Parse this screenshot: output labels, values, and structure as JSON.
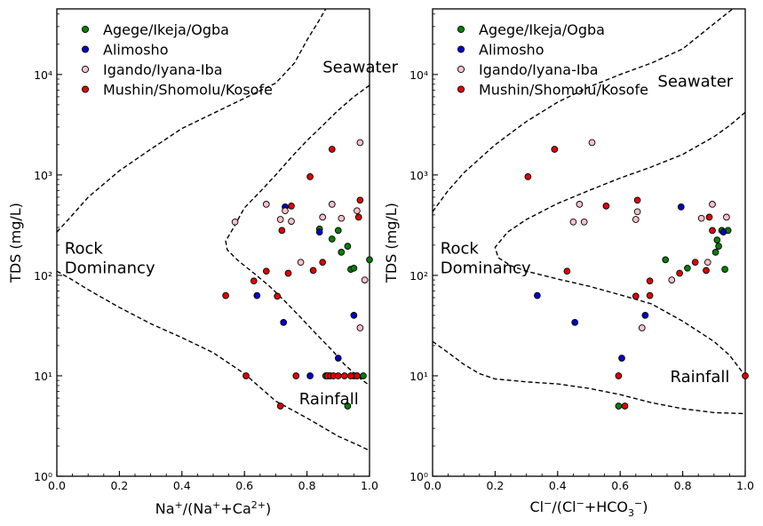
{
  "chart_data": [
    {
      "type": "scatter",
      "title": "",
      "xlabel": "Na⁺/(Na⁺+Ca²⁺)",
      "ylabel": "TDS (mg/L)",
      "xlim": [
        0,
        1
      ],
      "ylim": [
        1,
        45000
      ],
      "yscale": "log",
      "grid": false,
      "legend_position": "top-left",
      "x_ticks": [
        "0.0",
        "0.2",
        "0.4",
        "0.6",
        "0.8",
        "1.0"
      ],
      "y_ticks": [
        "10⁰",
        "10¹",
        "10²",
        "10³",
        "10⁴"
      ],
      "annotations": [
        {
          "text": "Seawater",
          "x": 0.85,
          "y": 10500
        },
        {
          "text": "Rock",
          "x": 0.025,
          "y": 165
        },
        {
          "text": "Dominancy",
          "x": 0.025,
          "y": 105
        },
        {
          "text": "Rainfall",
          "x": 0.775,
          "y": 5.2
        }
      ],
      "series": [
        {
          "name": "Agege/Ikeja/Ogba",
          "color": "#008000",
          "points": [
            [
              0.84,
              290
            ],
            [
              0.88,
              230
            ],
            [
              0.9,
              280
            ],
            [
              0.91,
              170
            ],
            [
              0.93,
              195
            ],
            [
              0.94,
              115
            ],
            [
              0.95,
              118
            ],
            [
              1.0,
              143
            ],
            [
              0.86,
              10
            ],
            [
              0.87,
              10
            ],
            [
              0.93,
              5
            ],
            [
              0.95,
              10
            ],
            [
              0.98,
              10
            ]
          ]
        },
        {
          "name": "Alimosho",
          "color": "#0000cc",
          "points": [
            [
              0.64,
              63
            ],
            [
              0.725,
              34
            ],
            [
              0.73,
              480
            ],
            [
              0.84,
              270
            ],
            [
              0.81,
              10
            ],
            [
              0.9,
              15
            ],
            [
              0.95,
              40
            ],
            [
              0.96,
              10
            ]
          ]
        },
        {
          "name": "Igando/Iyana-Iba",
          "color": "#ffc0cb",
          "points": [
            [
              0.57,
              340
            ],
            [
              0.67,
              510
            ],
            [
              0.715,
              360
            ],
            [
              0.73,
              440
            ],
            [
              0.75,
              345
            ],
            [
              0.78,
              135
            ],
            [
              0.85,
              380
            ],
            [
              0.88,
              510
            ],
            [
              0.91,
              370
            ],
            [
              0.97,
              2100
            ],
            [
              0.97,
              30
            ],
            [
              0.985,
              90
            ],
            [
              0.96,
              440
            ]
          ]
        },
        {
          "name": "Mushin/Shomolu/Kosofe",
          "color": "#e00000",
          "points": [
            [
              0.54,
              63
            ],
            [
              0.605,
              10
            ],
            [
              0.63,
              88
            ],
            [
              0.67,
              110
            ],
            [
              0.705,
              62
            ],
            [
              0.72,
              280
            ],
            [
              0.715,
              5
            ],
            [
              0.74,
              105
            ],
            [
              0.75,
              490
            ],
            [
              0.765,
              10
            ],
            [
              0.81,
              960
            ],
            [
              0.82,
              112
            ],
            [
              0.85,
              135
            ],
            [
              0.865,
              10
            ],
            [
              0.875,
              10
            ],
            [
              0.88,
              1800
            ],
            [
              0.885,
              10
            ],
            [
              0.9,
              10
            ],
            [
              0.92,
              10
            ],
            [
              0.94,
              10
            ],
            [
              0.965,
              380
            ],
            [
              0.97,
              560
            ],
            [
              0.96,
              10
            ]
          ]
        }
      ],
      "boundaries": [
        [
          [
            0,
            270
          ],
          [
            0.05,
            400
          ],
          [
            0.1,
            600
          ],
          [
            0.2,
            1100
          ],
          [
            0.3,
            1800
          ],
          [
            0.4,
            2900
          ],
          [
            0.5,
            4100
          ],
          [
            0.6,
            5800
          ],
          [
            0.7,
            8200
          ],
          [
            0.76,
            13000
          ],
          [
            0.8,
            22000
          ],
          [
            0.84,
            35000
          ],
          [
            0.86,
            45000
          ]
        ],
        [
          [
            0,
            110
          ],
          [
            0.05,
            90
          ],
          [
            0.1,
            72
          ],
          [
            0.2,
            48
          ],
          [
            0.3,
            33
          ],
          [
            0.4,
            24
          ],
          [
            0.5,
            17
          ],
          [
            0.6,
            10.5
          ],
          [
            0.7,
            5.6
          ],
          [
            0.8,
            3.8
          ],
          [
            0.9,
            2.5
          ],
          [
            0.97,
            2.0
          ],
          [
            1.0,
            1.8
          ]
        ],
        [
          [
            1.0,
            7800
          ],
          [
            0.95,
            6000
          ],
          [
            0.9,
            4400
          ],
          [
            0.85,
            3100
          ],
          [
            0.8,
            2200
          ],
          [
            0.75,
            1500
          ],
          [
            0.7,
            1000
          ],
          [
            0.65,
            680
          ],
          [
            0.6,
            470
          ],
          [
            0.56,
            280
          ],
          [
            0.54,
            220
          ],
          [
            0.545,
            180
          ],
          [
            0.58,
            140
          ],
          [
            0.63,
            105
          ],
          [
            0.68,
            78
          ],
          [
            0.73,
            55
          ],
          [
            0.78,
            38
          ],
          [
            0.83,
            26
          ],
          [
            0.88,
            18
          ],
          [
            0.92,
            13
          ],
          [
            0.96,
            10
          ],
          [
            1.0,
            8
          ]
        ]
      ]
    },
    {
      "type": "scatter",
      "title": "",
      "xlabel": "Cl⁻/(Cl⁻+HCO₃⁻)",
      "ylabel": "TDS (mg/L)",
      "xlim": [
        0,
        1
      ],
      "ylim": [
        1,
        45000
      ],
      "yscale": "log",
      "grid": false,
      "legend_position": "top-left",
      "x_ticks": [
        "0.0",
        "0.2",
        "0.4",
        "0.6",
        "0.8",
        "1.0"
      ],
      "y_ticks": [
        "10⁰",
        "10¹",
        "10²",
        "10³",
        "10⁴"
      ],
      "annotations": [
        {
          "text": "Seawater",
          "x": 0.72,
          "y": 7600
        },
        {
          "text": "Rock",
          "x": 0.025,
          "y": 165
        },
        {
          "text": "Dominancy",
          "x": 0.025,
          "y": 105
        },
        {
          "text": "Rainfall",
          "x": 0.76,
          "y": 8.7
        }
      ],
      "series": [
        {
          "name": "Agege/Ikeja/Ogba",
          "color": "#008000",
          "points": [
            [
              0.595,
              5
            ],
            [
              0.745,
              143
            ],
            [
              0.815,
              118
            ],
            [
              0.905,
              170
            ],
            [
              0.91,
              225
            ],
            [
              0.915,
              195
            ],
            [
              0.925,
              280
            ],
            [
              0.935,
              115
            ],
            [
              0.945,
              280
            ]
          ]
        },
        {
          "name": "Alimosho",
          "color": "#0000cc",
          "points": [
            [
              0.335,
              63
            ],
            [
              0.455,
              34
            ],
            [
              0.605,
              15
            ],
            [
              0.68,
              40
            ],
            [
              0.795,
              480
            ],
            [
              0.93,
              270
            ]
          ]
        },
        {
          "name": "Igando/Iyana-Iba",
          "color": "#ffc0cb",
          "points": [
            [
              0.45,
              340
            ],
            [
              0.47,
              510
            ],
            [
              0.485,
              340
            ],
            [
              0.51,
              2100
            ],
            [
              0.65,
              360
            ],
            [
              0.655,
              430
            ],
            [
              0.67,
              30
            ],
            [
              0.765,
              90
            ],
            [
              0.86,
              370
            ],
            [
              0.88,
              135
            ],
            [
              0.895,
              510
            ],
            [
              0.94,
              380
            ]
          ]
        },
        {
          "name": "Mushin/Shomolu/Kosofe",
          "color": "#e00000",
          "points": [
            [
              0.305,
              960
            ],
            [
              0.39,
              1800
            ],
            [
              0.43,
              110
            ],
            [
              0.555,
              490
            ],
            [
              0.595,
              10
            ],
            [
              0.615,
              5
            ],
            [
              0.65,
              62
            ],
            [
              0.655,
              560
            ],
            [
              0.695,
              88
            ],
            [
              0.695,
              63
            ],
            [
              0.79,
              105
            ],
            [
              0.84,
              135
            ],
            [
              0.875,
              112
            ],
            [
              0.885,
              380
            ],
            [
              0.895,
              280
            ],
            [
              1.0,
              10
            ]
          ]
        }
      ],
      "boundaries": [
        [
          [
            0,
            430
          ],
          [
            0.05,
            700
          ],
          [
            0.1,
            1050
          ],
          [
            0.2,
            2000
          ],
          [
            0.3,
            3400
          ],
          [
            0.4,
            5300
          ],
          [
            0.5,
            7500
          ],
          [
            0.6,
            10000
          ],
          [
            0.7,
            13000
          ],
          [
            0.8,
            18000
          ],
          [
            0.9,
            32000
          ],
          [
            0.96,
            45000
          ]
        ],
        [
          [
            0,
            22
          ],
          [
            0.05,
            17
          ],
          [
            0.1,
            13
          ],
          [
            0.15,
            10.5
          ],
          [
            0.2,
            9.3
          ],
          [
            0.3,
            8.7
          ],
          [
            0.4,
            8.3
          ],
          [
            0.5,
            7.5
          ],
          [
            0.6,
            6.5
          ],
          [
            0.7,
            5.4
          ],
          [
            0.8,
            4.7
          ],
          [
            0.9,
            4.3
          ],
          [
            1.0,
            4.2
          ]
        ],
        [
          [
            1.0,
            4200
          ],
          [
            0.95,
            3100
          ],
          [
            0.9,
            2400
          ],
          [
            0.8,
            1600
          ],
          [
            0.7,
            1200
          ],
          [
            0.6,
            930
          ],
          [
            0.5,
            700
          ],
          [
            0.4,
            520
          ],
          [
            0.3,
            360
          ],
          [
            0.24,
            270
          ],
          [
            0.2,
            190
          ],
          [
            0.21,
            150
          ],
          [
            0.25,
            125
          ],
          [
            0.3,
            110
          ],
          [
            0.4,
            92
          ],
          [
            0.5,
            78
          ],
          [
            0.6,
            64
          ],
          [
            0.7,
            52
          ],
          [
            0.8,
            35
          ],
          [
            0.9,
            22
          ],
          [
            0.95,
            16
          ],
          [
            1.0,
            10
          ]
        ]
      ]
    }
  ]
}
